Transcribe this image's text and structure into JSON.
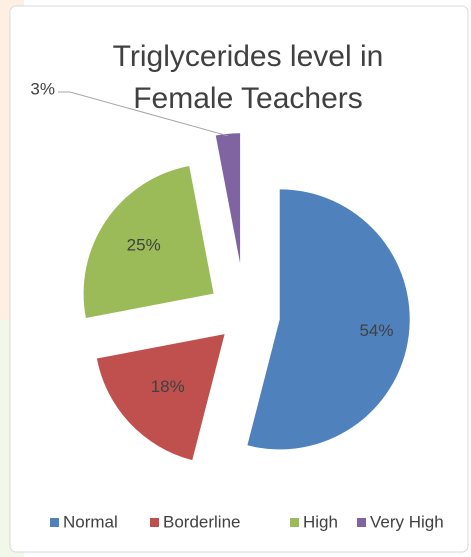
{
  "chart_data": {
    "type": "pie",
    "title": "Triglycerides level in Female Teachers",
    "categories": [
      "Normal",
      "Borderline",
      "High",
      "Very High"
    ],
    "values": [
      54,
      18,
      25,
      3
    ],
    "value_labels": [
      "54%",
      "18%",
      "25%",
      "3%"
    ],
    "colors": [
      "#4f81bd",
      "#c0504d",
      "#9bbb59",
      "#8064a2"
    ],
    "legend": "bottom"
  }
}
